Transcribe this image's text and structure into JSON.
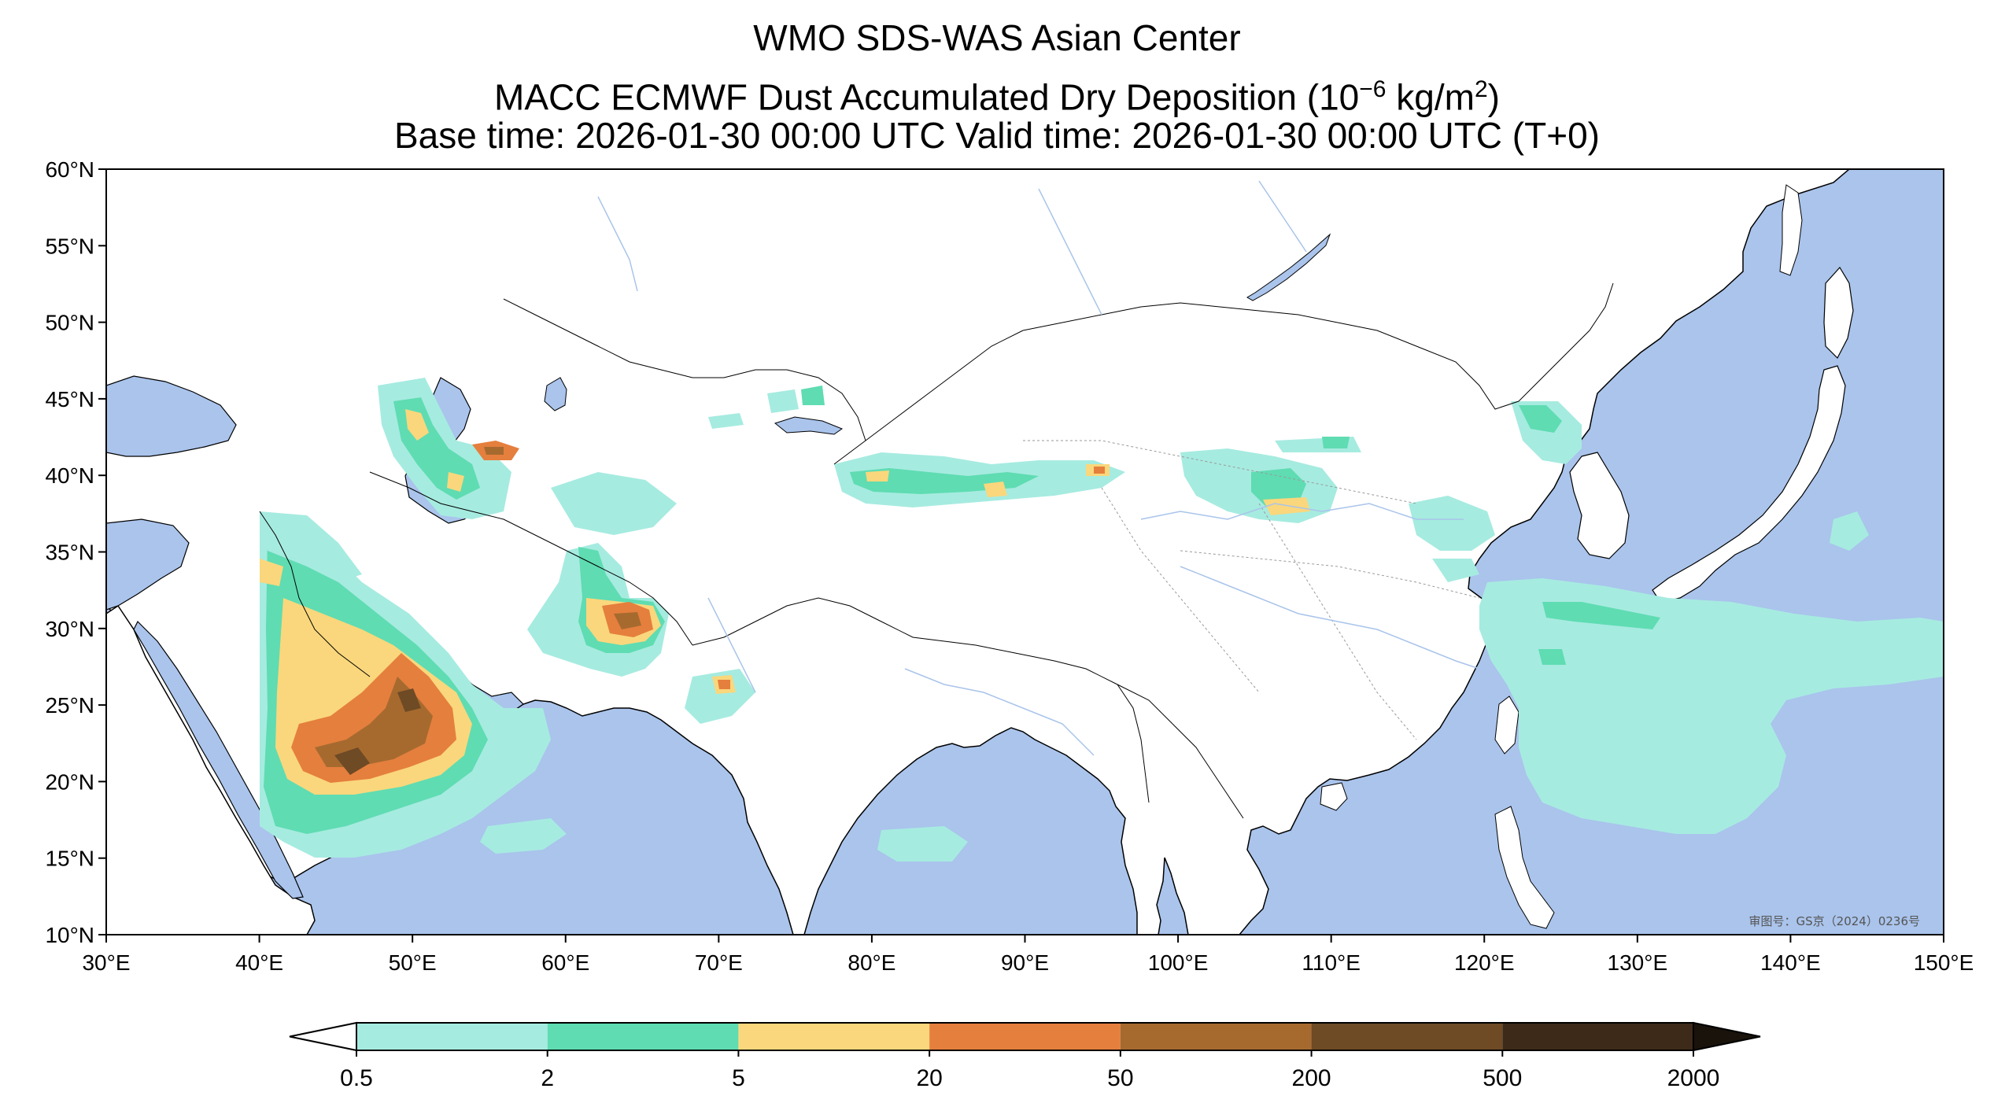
{
  "titles": {
    "line1": "WMO SDS-WAS Asian Center",
    "line2_text": "MACC ECMWF Dust Accumulated Dry Deposition (10",
    "line2_exp": "−6",
    "line2_unit": " kg/m",
    "line2_unit_exp": "2",
    "line2_end": ")",
    "line3": "Base time: 2026-01-30 00:00 UTC Valid time: 2026-01-30 00:00 UTC (T+0)"
  },
  "map": {
    "lon_range": [
      30,
      150
    ],
    "lat_range": [
      10,
      60
    ],
    "lon_ticks": [
      "30°E",
      "40°E",
      "50°E",
      "60°E",
      "70°E",
      "80°E",
      "90°E",
      "100°E",
      "110°E",
      "120°E",
      "130°E",
      "140°E",
      "150°E"
    ],
    "lat_ticks": [
      "60°N",
      "55°N",
      "50°N",
      "45°N",
      "40°N",
      "35°N",
      "30°N",
      "25°N",
      "20°N",
      "15°N",
      "10°N"
    ],
    "approval_number": "审图号：GS京（2024）0236号",
    "ocean_color": "#aac4ec",
    "land_color": "#ffffff"
  },
  "colorbar": {
    "levels": [
      "0.5",
      "2",
      "5",
      "20",
      "50",
      "200",
      "500",
      "2000"
    ],
    "colors": [
      "#a6ebe0",
      "#5fdcb2",
      "#fad77c",
      "#e57f3d",
      "#a66a2f",
      "#6e4a25",
      "#3d2a18"
    ],
    "over_color": "#1a130b"
  }
}
